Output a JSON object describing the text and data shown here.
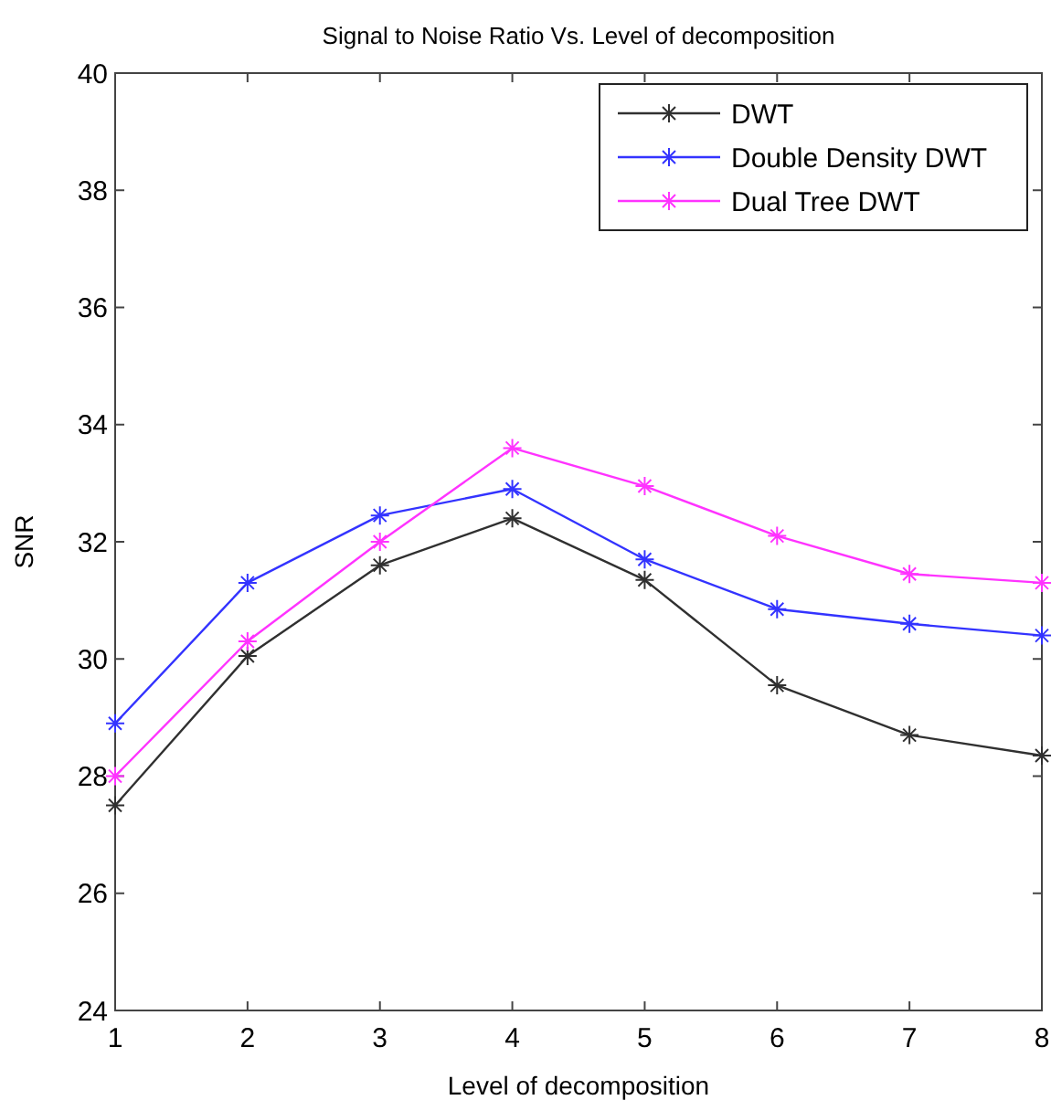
{
  "chart_data": {
    "type": "line",
    "title": "Signal to Noise Ratio Vs. Level of decomposition",
    "xlabel": "Level of decomposition",
    "ylabel": "SNR",
    "x": [
      1,
      2,
      3,
      4,
      5,
      6,
      7,
      8
    ],
    "series": [
      {
        "name": "DWT",
        "color": "#303030",
        "values": [
          27.5,
          30.05,
          31.6,
          32.4,
          31.35,
          29.55,
          28.7,
          28.35
        ]
      },
      {
        "name": "Double Density DWT",
        "color": "#3333ff",
        "values": [
          28.9,
          31.3,
          32.45,
          32.9,
          31.7,
          30.85,
          30.6,
          30.4
        ]
      },
      {
        "name": "Dual Tree DWT",
        "color": "#ff33ff",
        "values": [
          28.0,
          30.3,
          32.0,
          33.6,
          32.95,
          32.1,
          31.45,
          31.3
        ]
      }
    ],
    "xlim": [
      1,
      8
    ],
    "xticks": [
      1,
      2,
      3,
      4,
      5,
      6,
      7,
      8
    ],
    "ylim": [
      24,
      40
    ],
    "yticks": [
      24,
      26,
      28,
      30,
      32,
      34,
      36,
      38,
      40
    ],
    "grid": false,
    "legend": "top right",
    "marker": "cross",
    "line_style": "solid"
  }
}
